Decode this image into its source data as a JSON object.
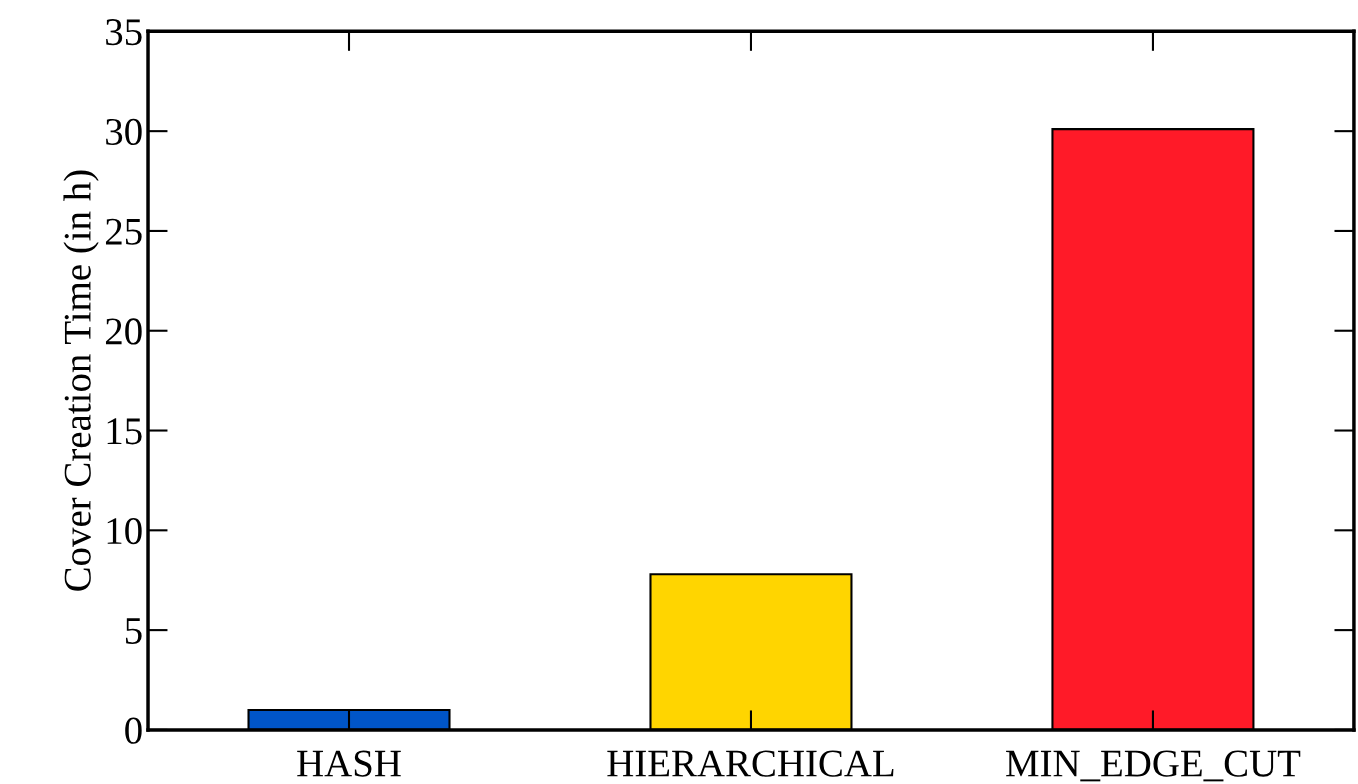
{
  "chart_data": {
    "type": "bar",
    "ylabel": "Cover Creation Time (in h)",
    "categories": [
      "HASH",
      "HIERARCHICAL",
      "MIN_EDGE_CUT"
    ],
    "values": [
      1.0,
      7.8,
      30.1
    ],
    "colors": [
      "#0055c8",
      "#ffd500",
      "#ff1a28"
    ],
    "ylim": [
      0,
      35
    ],
    "yticks": [
      0,
      5,
      10,
      15,
      20,
      25,
      30,
      35
    ],
    "grid": false
  }
}
